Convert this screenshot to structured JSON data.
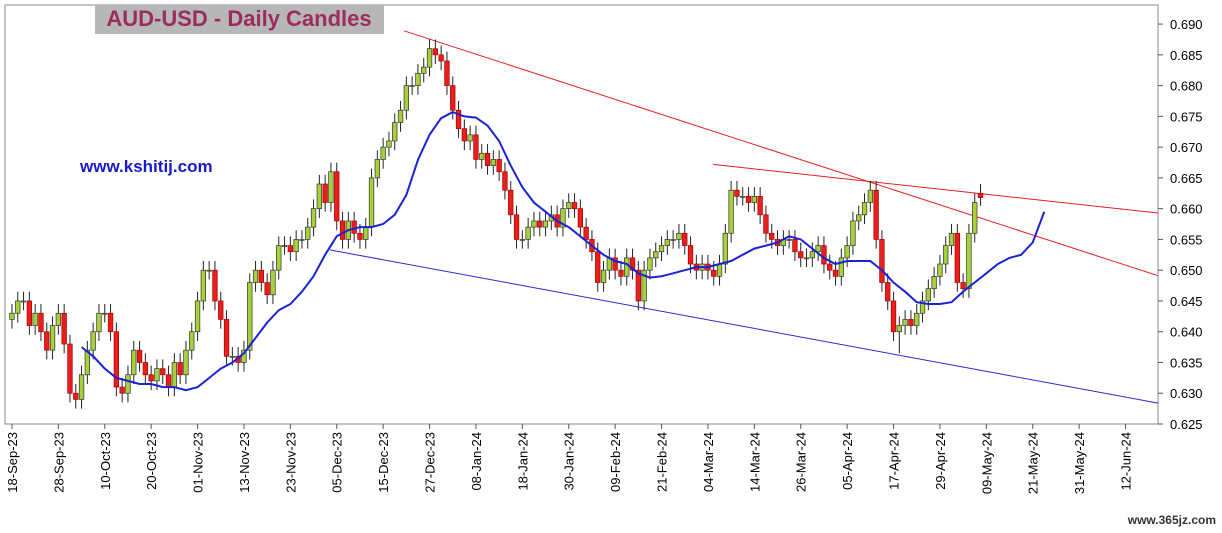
{
  "chart_data": {
    "type": "candlestick",
    "title": "AUD-USD - Daily Candles",
    "annotation": "www.kshitij.com",
    "watermark": "www.365jz.com",
    "up_color": "#a6d13a",
    "down_color": "#e8201c",
    "xlim": [
      -1.2,
      197.6
    ],
    "ylim": [
      0.625,
      0.6931
    ],
    "xticks": [
      {
        "value": 0,
        "label": "18-Sep-23"
      },
      {
        "value": 8,
        "label": "28-Sep-23"
      },
      {
        "value": 16,
        "label": "10-Oct-23"
      },
      {
        "value": 24,
        "label": "20-Oct-23"
      },
      {
        "value": 32,
        "label": "01-Nov-23"
      },
      {
        "value": 40,
        "label": "13-Nov-23"
      },
      {
        "value": 48,
        "label": "23-Nov-23"
      },
      {
        "value": 56,
        "label": "05-Dec-23"
      },
      {
        "value": 64,
        "label": "15-Dec-23"
      },
      {
        "value": 72,
        "label": "27-Dec-23"
      },
      {
        "value": 80,
        "label": "08-Jan-24"
      },
      {
        "value": 88,
        "label": "18-Jan-24"
      },
      {
        "value": 96,
        "label": "30-Jan-24"
      },
      {
        "value": 104,
        "label": "09-Feb-24"
      },
      {
        "value": 112,
        "label": "21-Feb-24"
      },
      {
        "value": 120,
        "label": "04-Mar-24"
      },
      {
        "value": 128,
        "label": "14-Mar-24"
      },
      {
        "value": 136,
        "label": "26-Mar-24"
      },
      {
        "value": 144,
        "label": "05-Apr-24"
      },
      {
        "value": 152,
        "label": "17-Apr-24"
      },
      {
        "value": 160,
        "label": "29-Apr-24"
      },
      {
        "value": 168,
        "label": "09-May-24"
      },
      {
        "value": 176,
        "label": "21-May-24"
      },
      {
        "value": 184,
        "label": "31-May-24"
      },
      {
        "value": 192,
        "label": "12-Jun-24"
      }
    ],
    "yticks": [
      0.625,
      {
        "value": 0.63,
        "label": "0.630"
      },
      0.635,
      {
        "value": 0.64,
        "label": "0.640"
      },
      0.645,
      {
        "value": 0.65,
        "label": "0.650"
      },
      0.655,
      {
        "value": 0.66,
        "label": "0.660"
      },
      0.665,
      {
        "value": 0.67,
        "label": "0.670"
      },
      0.675,
      {
        "value": 0.68,
        "label": "0.680"
      },
      0.685,
      {
        "value": 0.69,
        "label": "0.690"
      }
    ],
    "open": [
      0.642,
      0.643,
      0.645,
      0.645,
      0.641,
      0.643,
      0.64,
      0.637,
      0.641,
      0.643,
      0.638,
      0.63,
      0.629,
      0.633,
      0.637,
      0.64,
      0.643,
      0.643,
      0.64,
      0.631,
      0.63,
      0.633,
      0.637,
      0.635,
      0.633,
      0.632,
      0.634,
      0.633,
      0.631,
      0.635,
      0.633,
      0.637,
      0.64,
      0.645,
      0.65,
      0.65,
      0.645,
      0.642,
      0.636,
      0.636,
      0.635,
      0.637,
      0.648,
      0.65,
      0.648,
      0.646,
      0.65,
      0.654,
      0.654,
      0.653,
      0.655,
      0.655,
      0.657,
      0.66,
      0.664,
      0.661,
      0.666,
      0.658,
      0.655,
      0.658,
      0.656,
      0.655,
      0.657,
      0.665,
      0.668,
      0.67,
      0.671,
      0.674,
      0.676,
      0.68,
      0.68,
      0.682,
      0.683,
      0.686,
      0.685,
      0.684,
      0.68,
      0.676,
      0.673,
      0.671,
      0.672,
      0.668,
      0.669,
      0.667,
      0.668,
      0.666,
      0.663,
      0.659,
      0.655,
      0.655,
      0.657,
      0.658,
      0.657,
      0.658,
      0.659,
      0.657,
      0.66,
      0.661,
      0.66,
      0.657,
      0.655,
      0.653,
      0.648,
      0.65,
      0.652,
      0.65,
      0.649,
      0.652,
      0.65,
      0.645,
      0.65,
      0.652,
      0.653,
      0.654,
      0.655,
      0.655,
      0.656,
      0.654,
      0.651,
      0.65,
      0.651,
      0.65,
      0.649,
      0.651,
      0.656,
      0.663,
      0.662,
      0.662,
      0.661,
      0.662,
      0.659,
      0.656,
      0.655,
      0.654,
      0.655,
      0.655,
      0.653,
      0.652,
      0.652,
      0.653,
      0.654,
      0.651,
      0.65,
      0.649,
      0.652,
      0.654,
      0.658,
      0.659,
      0.661,
      0.663,
      0.655,
      0.648,
      0.645,
      0.64,
      0.641,
      0.642,
      0.641,
      0.643,
      0.645,
      0.647,
      0.649,
      0.651,
      0.654,
      0.656,
      0.648,
      0.647,
      0.656,
      0.6625
    ],
    "high": [
      0.6445,
      0.6465,
      0.6465,
      0.6465,
      0.6445,
      0.6445,
      0.6415,
      0.6425,
      0.6445,
      0.6445,
      0.6395,
      0.6315,
      0.6345,
      0.6385,
      0.6415,
      0.6445,
      0.6445,
      0.6445,
      0.6415,
      0.6325,
      0.6345,
      0.6385,
      0.6385,
      0.6365,
      0.6345,
      0.6355,
      0.6355,
      0.6345,
      0.6365,
      0.6365,
      0.6385,
      0.6415,
      0.6465,
      0.6515,
      0.6515,
      0.6515,
      0.6465,
      0.6435,
      0.6375,
      0.6375,
      0.6385,
      0.6495,
      0.6515,
      0.6515,
      0.6495,
      0.6515,
      0.6555,
      0.6555,
      0.6555,
      0.6565,
      0.6565,
      0.6585,
      0.6615,
      0.6655,
      0.6655,
      0.6675,
      0.6675,
      0.6595,
      0.6595,
      0.6595,
      0.6575,
      0.6585,
      0.6665,
      0.6695,
      0.6715,
      0.6725,
      0.6755,
      0.6775,
      0.6815,
      0.6815,
      0.6835,
      0.6845,
      0.6875,
      0.6875,
      0.6865,
      0.6855,
      0.6815,
      0.6775,
      0.6745,
      0.6735,
      0.6735,
      0.6705,
      0.6705,
      0.6695,
      0.6695,
      0.6675,
      0.6645,
      0.6605,
      0.6565,
      0.6585,
      0.6595,
      0.6595,
      0.6595,
      0.6605,
      0.6605,
      0.6615,
      0.6625,
      0.6625,
      0.6615,
      0.6585,
      0.6565,
      0.6545,
      0.6515,
      0.6535,
      0.6535,
      0.6515,
      0.6535,
      0.6535,
      0.6515,
      0.6515,
      0.6535,
      0.6545,
      0.6555,
      0.6565,
      0.6565,
      0.6575,
      0.6575,
      0.6555,
      0.6525,
      0.6525,
      0.6525,
      0.6515,
      0.6525,
      0.6575,
      0.6645,
      0.6645,
      0.6635,
      0.6635,
      0.6635,
      0.6635,
      0.6605,
      0.6575,
      0.6565,
      0.6565,
      0.6565,
      0.6565,
      0.6545,
      0.6535,
      0.6545,
      0.6555,
      0.6555,
      0.6525,
      0.6515,
      0.6535,
      0.6555,
      0.6595,
      0.6605,
      0.6625,
      0.6645,
      0.6645,
      0.6565,
      0.6495,
      0.6465,
      0.6425,
      0.6435,
      0.6435,
      0.6445,
      0.6465,
      0.6485,
      0.6505,
      0.6525,
      0.6555,
      0.6575,
      0.6575,
      0.6495,
      0.6575,
      0.6625,
      0.664
    ],
    "low": [
      0.6405,
      0.6415,
      0.6435,
      0.6395,
      0.6395,
      0.6385,
      0.6355,
      0.6355,
      0.6395,
      0.6365,
      0.6285,
      0.6275,
      0.6275,
      0.6315,
      0.6355,
      0.6385,
      0.6415,
      0.6385,
      0.6295,
      0.6285,
      0.6285,
      0.6315,
      0.6335,
      0.6315,
      0.6305,
      0.6305,
      0.6315,
      0.6295,
      0.6295,
      0.6315,
      0.6315,
      0.6355,
      0.6385,
      0.6435,
      0.6485,
      0.6435,
      0.6405,
      0.6345,
      0.6345,
      0.6335,
      0.6335,
      0.6355,
      0.6465,
      0.6465,
      0.6445,
      0.6445,
      0.6485,
      0.6525,
      0.6515,
      0.6515,
      0.6535,
      0.6535,
      0.6555,
      0.6585,
      0.6595,
      0.6595,
      0.6565,
      0.6535,
      0.6535,
      0.6545,
      0.6535,
      0.6535,
      0.6555,
      0.6635,
      0.6665,
      0.6685,
      0.6695,
      0.6725,
      0.6745,
      0.6785,
      0.6785,
      0.6805,
      0.6815,
      0.6835,
      0.6825,
      0.6785,
      0.6745,
      0.6715,
      0.6695,
      0.6695,
      0.6665,
      0.6665,
      0.6655,
      0.6655,
      0.6645,
      0.6615,
      0.6575,
      0.6535,
      0.6535,
      0.6535,
      0.6555,
      0.6555,
      0.6555,
      0.6565,
      0.6555,
      0.6555,
      0.6585,
      0.6585,
      0.6555,
      0.6535,
      0.6515,
      0.6465,
      0.6465,
      0.6485,
      0.6485,
      0.6475,
      0.6475,
      0.6485,
      0.6435,
      0.6435,
      0.6485,
      0.6505,
      0.6515,
      0.6525,
      0.6535,
      0.6535,
      0.6525,
      0.6495,
      0.6485,
      0.6485,
      0.6485,
      0.6475,
      0.6475,
      0.6495,
      0.6545,
      0.6605,
      0.6605,
      0.6595,
      0.6595,
      0.6575,
      0.6545,
      0.6535,
      0.6525,
      0.6525,
      0.6535,
      0.6515,
      0.6505,
      0.6505,
      0.6505,
      0.6515,
      0.6495,
      0.6485,
      0.6475,
      0.6475,
      0.6505,
      0.6525,
      0.6565,
      0.6575,
      0.6595,
      0.6535,
      0.6465,
      0.6435,
      0.6385,
      0.6365,
      0.6395,
      0.6395,
      0.6395,
      0.6415,
      0.6435,
      0.6455,
      0.6475,
      0.6495,
      0.6525,
      0.6465,
      0.6455,
      0.6455,
      0.6545,
      0.6605
    ],
    "close": [
      0.643,
      0.645,
      0.645,
      0.641,
      0.643,
      0.64,
      0.637,
      0.641,
      0.643,
      0.638,
      0.63,
      0.629,
      0.633,
      0.637,
      0.64,
      0.643,
      0.643,
      0.64,
      0.631,
      0.63,
      0.633,
      0.637,
      0.635,
      0.633,
      0.632,
      0.634,
      0.633,
      0.631,
      0.635,
      0.633,
      0.637,
      0.64,
      0.645,
      0.65,
      0.65,
      0.645,
      0.642,
      0.636,
      0.636,
      0.635,
      0.637,
      0.648,
      0.65,
      0.648,
      0.646,
      0.65,
      0.654,
      0.654,
      0.653,
      0.655,
      0.655,
      0.657,
      0.66,
      0.664,
      0.661,
      0.666,
      0.658,
      0.655,
      0.658,
      0.656,
      0.655,
      0.657,
      0.665,
      0.668,
      0.67,
      0.671,
      0.674,
      0.676,
      0.68,
      0.68,
      0.682,
      0.683,
      0.686,
      0.685,
      0.684,
      0.68,
      0.676,
      0.673,
      0.671,
      0.672,
      0.668,
      0.669,
      0.667,
      0.668,
      0.666,
      0.663,
      0.659,
      0.655,
      0.655,
      0.657,
      0.658,
      0.657,
      0.658,
      0.659,
      0.657,
      0.66,
      0.661,
      0.66,
      0.657,
      0.655,
      0.653,
      0.648,
      0.65,
      0.652,
      0.65,
      0.649,
      0.652,
      0.65,
      0.645,
      0.65,
      0.652,
      0.653,
      0.654,
      0.655,
      0.655,
      0.656,
      0.654,
      0.651,
      0.65,
      0.651,
      0.65,
      0.649,
      0.651,
      0.656,
      0.663,
      0.662,
      0.662,
      0.661,
      0.662,
      0.659,
      0.656,
      0.655,
      0.654,
      0.655,
      0.655,
      0.653,
      0.652,
      0.652,
      0.653,
      0.654,
      0.651,
      0.65,
      0.649,
      0.652,
      0.654,
      0.658,
      0.659,
      0.661,
      0.663,
      0.655,
      0.648,
      0.645,
      0.64,
      0.641,
      0.642,
      0.641,
      0.643,
      0.645,
      0.647,
      0.649,
      0.651,
      0.654,
      0.656,
      0.648,
      0.647,
      0.656,
      0.661,
      0.6618
    ],
    "moving_average": {
      "color": "#1a22d6",
      "x": [
        12,
        14,
        16,
        18,
        20,
        22,
        24,
        26,
        28,
        30,
        32,
        34,
        36,
        38,
        40,
        42,
        44,
        46,
        48,
        50,
        52,
        54,
        56,
        58,
        60,
        62,
        64,
        66,
        68,
        70,
        72,
        74,
        76,
        78,
        80,
        82,
        84,
        86,
        88,
        90,
        92,
        94,
        96,
        98,
        100,
        102,
        104,
        106,
        108,
        110,
        112,
        114,
        116,
        118,
        120,
        122,
        124,
        126,
        128,
        130,
        132,
        134,
        136,
        138,
        140,
        142,
        144,
        146,
        148,
        150,
        152,
        154,
        156,
        158,
        160,
        162,
        164,
        166,
        168,
        170,
        172,
        174,
        176,
        178
      ],
      "values": [
        0.6375,
        0.636,
        0.634,
        0.6325,
        0.632,
        0.6315,
        0.6315,
        0.631,
        0.631,
        0.6305,
        0.631,
        0.6325,
        0.634,
        0.635,
        0.6365,
        0.639,
        0.6415,
        0.6435,
        0.6445,
        0.6465,
        0.649,
        0.6525,
        0.6555,
        0.6565,
        0.657,
        0.657,
        0.6575,
        0.659,
        0.6622,
        0.6679,
        0.672,
        0.6747,
        0.6757,
        0.675,
        0.6748,
        0.6735,
        0.671,
        0.667,
        0.6635,
        0.661,
        0.6595,
        0.658,
        0.657,
        0.6555,
        0.654,
        0.6525,
        0.6515,
        0.651,
        0.6495,
        0.6488,
        0.649,
        0.6495,
        0.65,
        0.6505,
        0.6505,
        0.651,
        0.6515,
        0.6525,
        0.6535,
        0.654,
        0.6545,
        0.6555,
        0.655,
        0.6535,
        0.652,
        0.651,
        0.6515,
        0.6515,
        0.6515,
        0.65,
        0.648,
        0.6465,
        0.6448,
        0.6445,
        0.6445,
        0.6448,
        0.6465,
        0.648,
        0.6495,
        0.651,
        0.652,
        0.6525,
        0.6545,
        0.6595
      ]
    },
    "trendlines": [
      {
        "color": "#e8201c",
        "x": [
          67.6,
          197.6
        ],
        "values": [
          0.6889,
          0.6491
        ]
      },
      {
        "color": "#e8201c",
        "x": [
          120.9,
          197.6
        ],
        "values": [
          0.6672,
          0.6593
        ]
      },
      {
        "color": "#2a2ad6",
        "x": [
          54.8,
          197.6
        ],
        "values": [
          0.6533,
          0.6284
        ]
      }
    ]
  }
}
